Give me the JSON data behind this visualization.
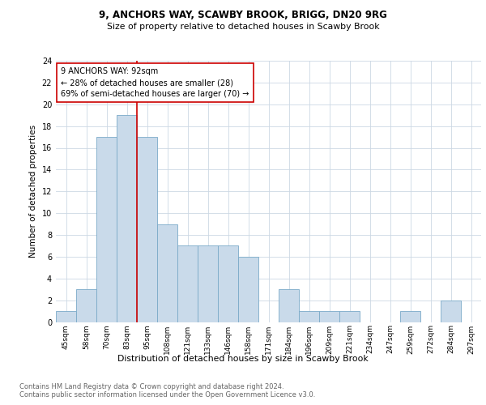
{
  "title1": "9, ANCHORS WAY, SCAWBY BROOK, BRIGG, DN20 9RG",
  "title2": "Size of property relative to detached houses in Scawby Brook",
  "xlabel": "Distribution of detached houses by size in Scawby Brook",
  "ylabel": "Number of detached properties",
  "categories": [
    "45sqm",
    "58sqm",
    "70sqm",
    "83sqm",
    "95sqm",
    "108sqm",
    "121sqm",
    "133sqm",
    "146sqm",
    "158sqm",
    "171sqm",
    "184sqm",
    "196sqm",
    "209sqm",
    "221sqm",
    "234sqm",
    "247sqm",
    "259sqm",
    "272sqm",
    "284sqm",
    "297sqm"
  ],
  "values": [
    1,
    3,
    17,
    19,
    17,
    9,
    7,
    7,
    7,
    6,
    0,
    3,
    1,
    1,
    1,
    0,
    0,
    1,
    0,
    2,
    0
  ],
  "bar_color": "#c9daea",
  "bar_edge_color": "#7aaac8",
  "vline_color": "#cc0000",
  "vline_x_index": 4,
  "annotation_lines": [
    "9 ANCHORS WAY: 92sqm",
    "← 28% of detached houses are smaller (28)",
    "69% of semi-detached houses are larger (70) →"
  ],
  "annotation_box_color": "#ffffff",
  "annotation_box_edge_color": "#cc0000",
  "ylim": [
    0,
    24
  ],
  "yticks": [
    0,
    2,
    4,
    6,
    8,
    10,
    12,
    14,
    16,
    18,
    20,
    22,
    24
  ],
  "footer_text": "Contains HM Land Registry data © Crown copyright and database right 2024.\nContains public sector information licensed under the Open Government Licence v3.0.",
  "background_color": "#ffffff",
  "grid_color": "#ccd8e4"
}
